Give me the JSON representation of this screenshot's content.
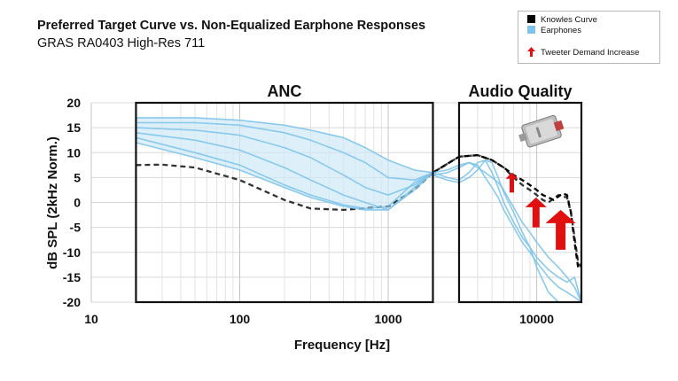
{
  "chart_data": {
    "type": "line",
    "title": "Preferred Target Curve vs. Non-Equalized Earphone Responses",
    "subtitle": "GRAS RA0403 High-Res 711",
    "xlabel": "Frequency [Hz]",
    "ylabel": "dB SPL (2kHz Norm.)",
    "xscale": "log",
    "xlim": [
      10,
      20000
    ],
    "ylim": [
      -20,
      20
    ],
    "x_ticks": [
      "10",
      "100",
      "1000",
      "10000"
    ],
    "x_tick_values": [
      10,
      100,
      1000,
      10000
    ],
    "y_ticks": [
      "20",
      "15",
      "10",
      "5",
      "0",
      "-5",
      "-10",
      "-15",
      "-20"
    ],
    "y_tick_values": [
      20,
      15,
      10,
      5,
      0,
      -5,
      -10,
      -15,
      -20
    ],
    "grid": true,
    "legend": {
      "position": "top-right",
      "entries": [
        {
          "label": "Knowles Curve",
          "color": "#000000"
        },
        {
          "label": "Earphones",
          "color": "#7ec4ea"
        },
        {
          "label": "Tweeter Demand Increase",
          "color": "#e01010"
        }
      ]
    },
    "regions": [
      {
        "label": "ANC",
        "x": [
          20,
          2000
        ]
      },
      {
        "label": "Audio Quality",
        "x": [
          3000,
          20000
        ]
      }
    ],
    "series": [
      {
        "name": "Knowles Curve",
        "style": "dashed",
        "color": "#333333",
        "x": [
          20,
          30,
          50,
          100,
          200,
          300,
          500,
          1000,
          1500,
          2000,
          3000,
          4000,
          5000,
          6000,
          7000,
          8000,
          9000,
          10000,
          11000,
          12000,
          14000,
          16000,
          17000,
          18000,
          19000,
          20000
        ],
        "y": [
          7.5,
          7.6,
          7,
          4.5,
          0.5,
          -1.2,
          -1.5,
          -0.8,
          2.5,
          6,
          9.2,
          9.5,
          8.5,
          7,
          5,
          3.5,
          2.5,
          1.5,
          0.5,
          0,
          1.5,
          1,
          -2,
          -7,
          -12,
          -13
        ]
      },
      {
        "name": "Knowles Curve (upper)",
        "style": "dashed",
        "color": "#000000",
        "x": [
          2000,
          3000,
          4000,
          5000,
          6000,
          7000,
          8000,
          9000,
          10000,
          11000,
          12000,
          13000,
          14000,
          15000,
          16000,
          17000,
          18000,
          19000,
          20000
        ],
        "y": [
          6,
          9.2,
          9.5,
          8.5,
          7,
          5.5,
          4.5,
          3.5,
          2.5,
          1.5,
          1,
          0.5,
          1.2,
          1.8,
          1.5,
          -2,
          -8,
          -13,
          -13
        ]
      },
      {
        "name": "Earphones (upper bound)",
        "color": "#7ec4ea",
        "x": [
          20,
          50,
          100,
          200,
          300,
          500,
          700,
          1000,
          1500,
          2000
        ],
        "y": [
          17,
          17,
          16.5,
          15.5,
          14.5,
          13,
          11,
          8.5,
          6.5,
          6
        ]
      },
      {
        "name": "Earphones (lower bound)",
        "color": "#7ec4ea",
        "x": [
          20,
          50,
          100,
          200,
          300,
          500,
          700,
          1000,
          1500,
          2000
        ],
        "y": [
          12,
          9,
          6.5,
          3,
          1,
          -0.8,
          -1.5,
          -1.5,
          3,
          6
        ]
      },
      {
        "name": "Earphone 1",
        "color": "#7ec4ea",
        "x": [
          20,
          50,
          100,
          200,
          300,
          500,
          700,
          1000,
          1500,
          2000
        ],
        "y": [
          16,
          16,
          15.5,
          14,
          12.5,
          10,
          8,
          5,
          4.5,
          6
        ]
      },
      {
        "name": "Earphone 2",
        "color": "#7ec4ea",
        "x": [
          20,
          50,
          100,
          200,
          300,
          500,
          700,
          1000,
          1500,
          2000
        ],
        "y": [
          15,
          14.5,
          13.5,
          11,
          9,
          5.5,
          3,
          1.5,
          3.5,
          6
        ]
      },
      {
        "name": "Earphone 3",
        "color": "#7ec4ea",
        "x": [
          20,
          50,
          100,
          200,
          300,
          500,
          700,
          1000,
          1500,
          2000
        ],
        "y": [
          14,
          12.5,
          10.5,
          7,
          4.5,
          1.5,
          0,
          -1.5,
          2.5,
          6
        ]
      },
      {
        "name": "Earphone 4",
        "color": "#7ec4ea",
        "x": [
          20,
          50,
          100,
          200,
          300,
          500,
          700,
          1000,
          1500,
          2000
        ],
        "y": [
          13,
          10,
          7.5,
          3.5,
          1.5,
          -0.5,
          -1.2,
          -0.8,
          4,
          6
        ]
      },
      {
        "name": "Earphone HF 1",
        "color": "#7ec4ea",
        "x": [
          2000,
          2500,
          3000,
          3500,
          4000,
          4500,
          5000,
          5500,
          6000,
          7000,
          8000,
          9000,
          10000,
          12000,
          14000,
          16000,
          18000,
          20000
        ],
        "y": [
          5.5,
          6,
          7,
          8,
          7.5,
          5,
          3,
          1,
          -1.5,
          -5,
          -8,
          -10,
          -12,
          -15,
          -17,
          -18,
          -19,
          -20
        ]
      },
      {
        "name": "Earphone HF 2",
        "color": "#7ec4ea",
        "x": [
          2000,
          2500,
          3000,
          3500,
          4000,
          4500,
          5000,
          5500,
          6000,
          7000,
          8000,
          9000,
          10000,
          12000,
          14000,
          16000,
          18000,
          20000
        ],
        "y": [
          6,
          5,
          4.5,
          6,
          8,
          8.5,
          6,
          3,
          0,
          -4,
          -7,
          -9,
          -11,
          -13.5,
          -15,
          -16,
          -15,
          -20
        ]
      },
      {
        "name": "Earphone HF 3",
        "color": "#7ec4ea",
        "x": [
          2000,
          2500,
          3000,
          3500,
          4000,
          4500,
          5000,
          5500,
          6000,
          7000,
          8000,
          9000,
          10000,
          12000,
          14000,
          16000,
          18000,
          20000
        ],
        "y": [
          5.5,
          4.5,
          4,
          5,
          6.5,
          8.5,
          8,
          5,
          2,
          -2,
          -6,
          -9,
          -13,
          -18,
          -20,
          -20,
          -20,
          -20
        ]
      },
      {
        "name": "Earphone HF 4",
        "color": "#7ec4ea",
        "x": [
          2000,
          2500,
          3000,
          3500,
          4000,
          4500,
          5000,
          5500,
          6000,
          7000,
          8000,
          9000,
          10000,
          12000,
          14000,
          16000,
          18000,
          20000
        ],
        "y": [
          6,
          6.5,
          7.5,
          8,
          7,
          6,
          5,
          4,
          2.5,
          -1,
          -4,
          -6,
          -8,
          -11,
          -13,
          -15,
          -17,
          -20
        ]
      }
    ],
    "arrows": [
      {
        "x": 6800,
        "y_from": 2,
        "y_to": 6,
        "size": "small"
      },
      {
        "x": 9900,
        "y_from": -5,
        "y_to": 1,
        "size": "medium"
      },
      {
        "x": 14500,
        "y_from": -9.5,
        "y_to": -1.5,
        "size": "large"
      }
    ]
  }
}
